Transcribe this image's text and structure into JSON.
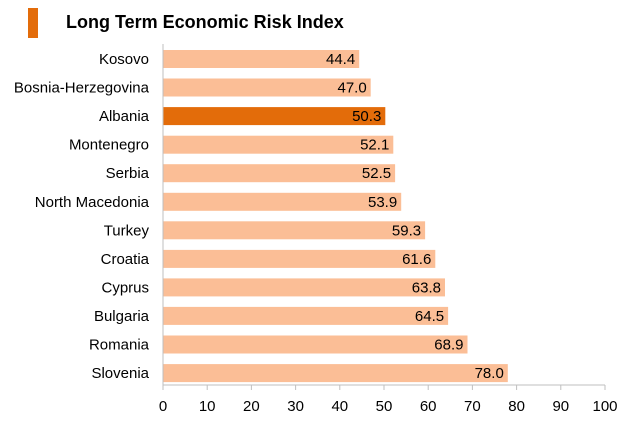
{
  "chart_data": {
    "type": "bar",
    "orientation": "horizontal",
    "title": "Long Term Economic Risk Index",
    "categories": [
      "Kosovo",
      "Bosnia-Herzegovina",
      "Albania",
      "Montenegro",
      "Serbia",
      "North Macedonia",
      "Turkey",
      "Croatia",
      "Cyprus",
      "Bulgaria",
      "Romania",
      "Slovenia"
    ],
    "values": [
      44.4,
      47.0,
      50.3,
      52.1,
      52.5,
      53.9,
      59.3,
      61.6,
      63.8,
      64.5,
      68.9,
      78.0
    ],
    "value_labels": [
      "44.4",
      "47.0",
      "50.3",
      "52.1",
      "52.5",
      "53.9",
      "59.3",
      "61.6",
      "63.8",
      "64.5",
      "68.9",
      "78.0"
    ],
    "highlight_category": "Albania",
    "xlim": [
      0,
      100
    ],
    "x_ticks": [
      0,
      10,
      20,
      30,
      40,
      50,
      60,
      70,
      80,
      90,
      100
    ],
    "xlabel": "",
    "ylabel": "",
    "grid": false,
    "legend": "none",
    "colors": {
      "bar": "#fbbe96",
      "highlight": "#e36c0a",
      "title_marker": "#e36c0a",
      "text": "#000000",
      "axis": "#bfbfbf"
    }
  }
}
